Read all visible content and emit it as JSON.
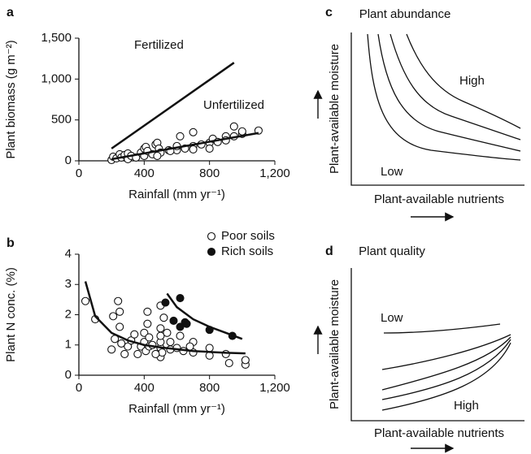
{
  "chart_data": [
    {
      "panel": "a",
      "type": "scatter",
      "xlabel": "Rainfall (mm yr⁻¹)",
      "ylabel": "Plant biomass (g m⁻²)",
      "xlim": [
        0,
        1200
      ],
      "ylim": [
        0,
        1500
      ],
      "xticks": [
        0,
        400,
        800,
        {
          "value": 1200,
          "label": "1,200"
        }
      ],
      "yticks": [
        0,
        500,
        {
          "value": 1000,
          "label": "1,000"
        },
        {
          "value": 1500,
          "label": "1,500"
        }
      ],
      "points": {
        "marker": "open",
        "x": [
          200,
          210,
          230,
          250,
          260,
          280,
          300,
          300,
          320,
          350,
          380,
          400,
          400,
          410,
          420,
          450,
          470,
          480,
          490,
          500,
          550,
          600,
          600,
          620,
          650,
          700,
          700,
          750,
          800,
          800,
          820,
          850,
          900,
          900,
          950,
          950,
          1000,
          1000,
          1100,
          600,
          700,
          480,
          560
        ],
        "values": [
          10,
          50,
          30,
          80,
          40,
          70,
          20,
          90,
          60,
          40,
          100,
          150,
          60,
          170,
          120,
          80,
          200,
          220,
          150,
          100,
          130,
          160,
          130,
          300,
          150,
          350,
          180,
          200,
          220,
          150,
          270,
          230,
          300,
          250,
          420,
          300,
          330,
          360,
          370,
          180,
          140,
          60,
          120
        ]
      },
      "series": [
        {
          "name": "Fertilized",
          "x": [
            200,
            950
          ],
          "values": [
            150,
            1200
          ]
        },
        {
          "name": "Unfertilized",
          "x": [
            200,
            1100
          ],
          "values": [
            20,
            340
          ]
        }
      ]
    },
    {
      "panel": "b",
      "type": "scatter",
      "xlabel": "Rainfall (mm yr⁻¹)",
      "ylabel": "Plant N conc. (%)",
      "xlim": [
        0,
        1200
      ],
      "ylim": [
        0,
        4
      ],
      "xticks": [
        0,
        400,
        800,
        {
          "value": 1200,
          "label": "1,200"
        }
      ],
      "yticks": [
        0,
        1,
        2,
        3,
        4
      ],
      "legend": "upper right",
      "series": [
        {
          "name": "Poor soils",
          "marker": "open",
          "x": [
            40,
            100,
            200,
            210,
            220,
            240,
            250,
            250,
            260,
            280,
            300,
            320,
            340,
            360,
            380,
            400,
            400,
            410,
            420,
            420,
            430,
            430,
            500,
            500,
            500,
            500,
            500,
            500,
            510,
            520,
            540,
            560,
            560,
            600,
            620,
            640,
            700,
            700,
            800,
            800,
            900,
            920,
            1020,
            1020,
            680,
            450,
            470
          ],
          "values": [
            2.45,
            1.85,
            0.85,
            1.95,
            1.2,
            2.45,
            1.6,
            2.1,
            1.05,
            0.7,
            0.95,
            1.15,
            1.35,
            0.7,
            0.95,
            1.1,
            1.4,
            0.8,
            1.7,
            2.1,
            1.25,
            0.95,
            0.6,
            0.9,
            1.1,
            1.3,
            1.55,
            2.3,
            0.75,
            1.9,
            1.4,
            0.85,
            1.1,
            0.9,
            1.3,
            0.8,
            1.1,
            0.75,
            0.9,
            0.65,
            0.7,
            0.4,
            0.35,
            0.5,
            0.95,
            1.0,
            0.7
          ],
          "fit_x": [
            40,
            100,
            200,
            300,
            400,
            500,
            600,
            700,
            800,
            900,
            1020
          ],
          "fit": [
            3.1,
            1.95,
            1.4,
            1.15,
            1.0,
            0.92,
            0.86,
            0.8,
            0.77,
            0.74,
            0.72
          ]
        },
        {
          "name": "Rich soils",
          "marker": "filled",
          "x": [
            530,
            620,
            620,
            650,
            580,
            800,
            940,
            660
          ],
          "values": [
            2.4,
            2.55,
            1.6,
            1.75,
            1.8,
            1.5,
            1.3,
            1.7
          ],
          "fit_x": [
            540,
            600,
            700,
            800,
            900,
            1000
          ],
          "fit": [
            2.7,
            2.25,
            1.85,
            1.6,
            1.4,
            1.2
          ]
        }
      ]
    },
    {
      "panel": "c",
      "type": "diagram",
      "title": "Plant abundance",
      "xlabel": "Plant-available nutrients",
      "ylabel": "Plant-available moisture",
      "high": "High",
      "low": "Low"
    },
    {
      "panel": "d",
      "type": "diagram",
      "title": "Plant quality",
      "xlabel": "Plant-available nutrients",
      "ylabel": "Plant-available moisture",
      "high": "High",
      "low": "Low"
    }
  ]
}
